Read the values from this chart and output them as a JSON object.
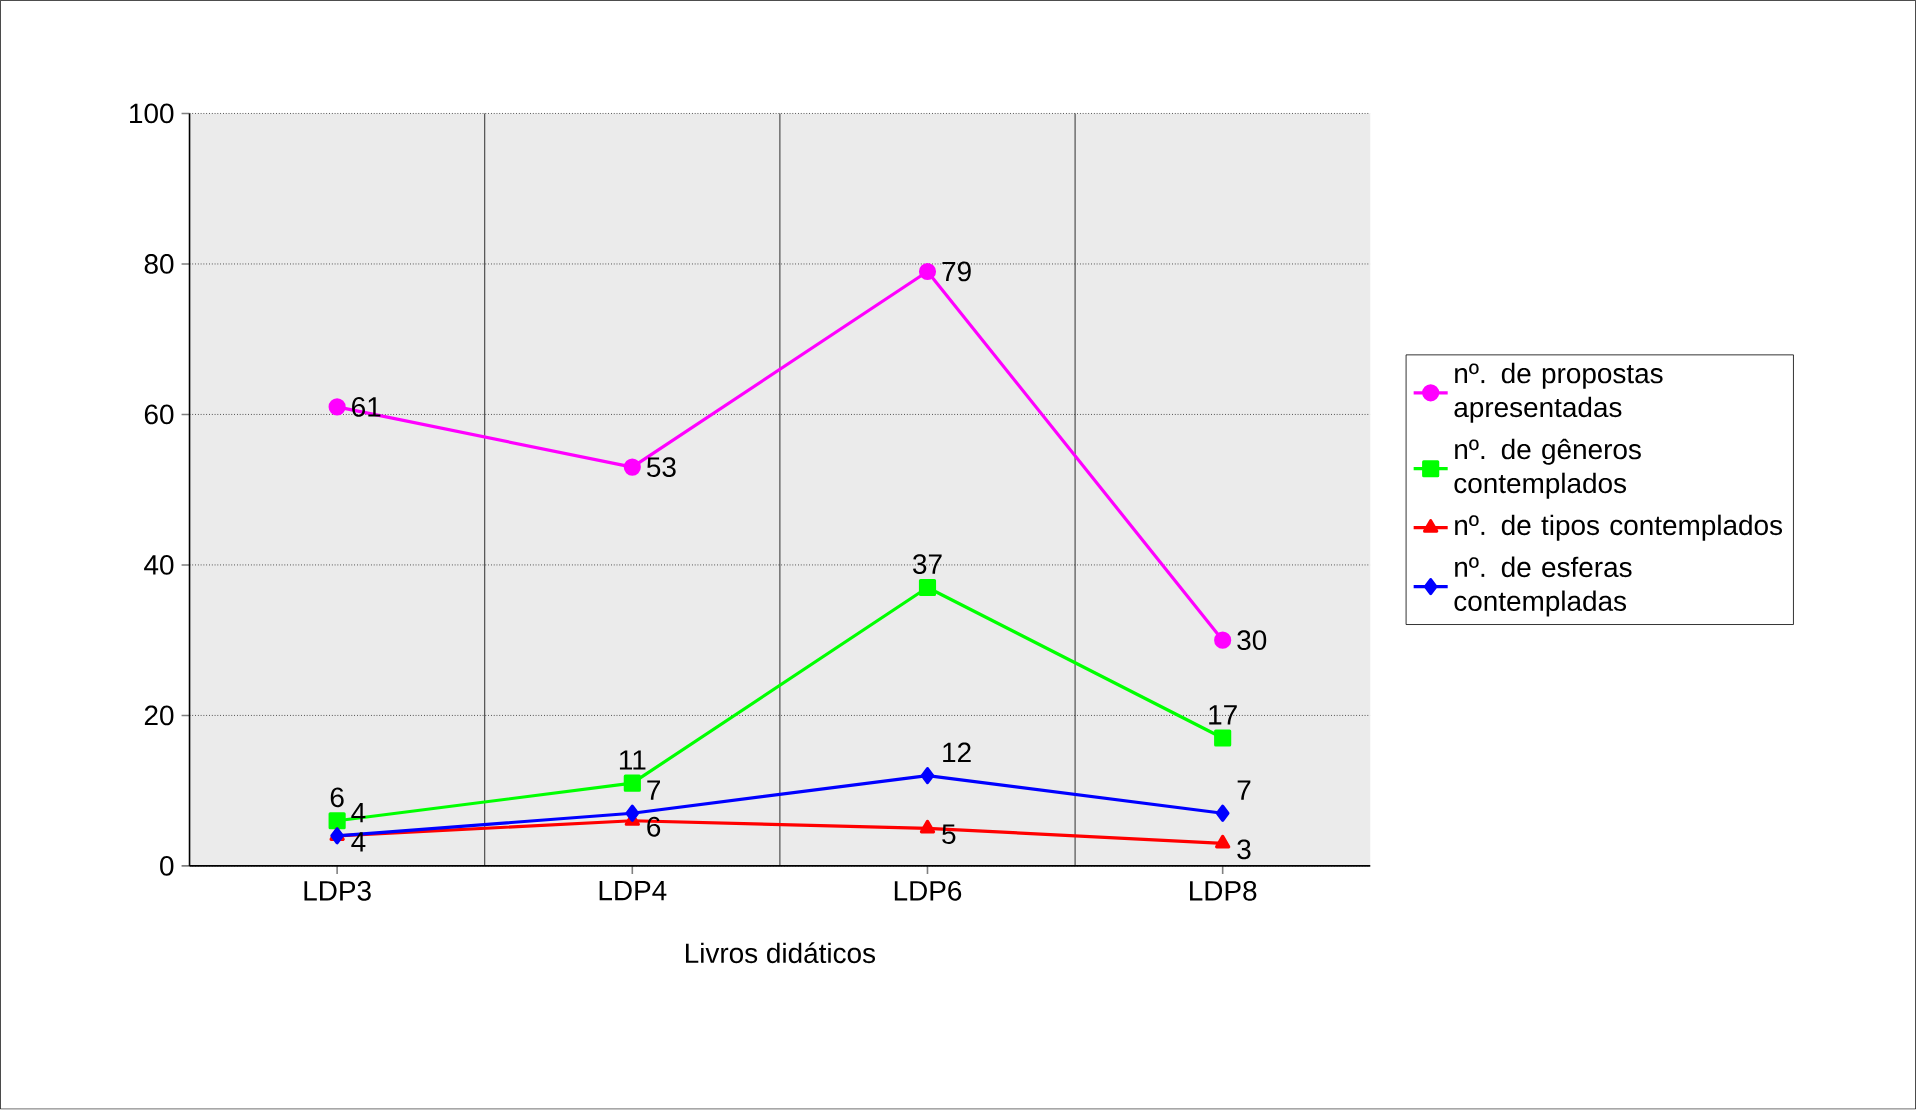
{
  "chart_data": {
    "type": "line",
    "xlabel": "Livros didáticos",
    "categories": [
      "LDP3",
      "LDP4",
      "LDP6",
      "LDP8"
    ],
    "series": [
      {
        "name": "nº. de propostas apresentadas",
        "color": "#ff00ff",
        "marker": "circle",
        "values": [
          61,
          53,
          79,
          30
        ]
      },
      {
        "name": "nº. de gêneros contemplados",
        "color": "#00ff00",
        "marker": "square",
        "values": [
          6,
          11,
          37,
          17
        ]
      },
      {
        "name": "nº. de tipos contemplados",
        "color": "#ff0000",
        "marker": "triangle",
        "values": [
          4,
          6,
          5,
          3
        ]
      },
      {
        "name": "nº. de esferas contempladas",
        "color": "#0000ff",
        "marker": "diamond",
        "values": [
          4,
          7,
          12,
          7
        ]
      }
    ],
    "ylim": [
      0,
      100
    ],
    "yticks": [
      0,
      20,
      40,
      60,
      80,
      100
    ],
    "grid": true,
    "legend": "right",
    "data_labels": true,
    "line_style": "solid"
  }
}
